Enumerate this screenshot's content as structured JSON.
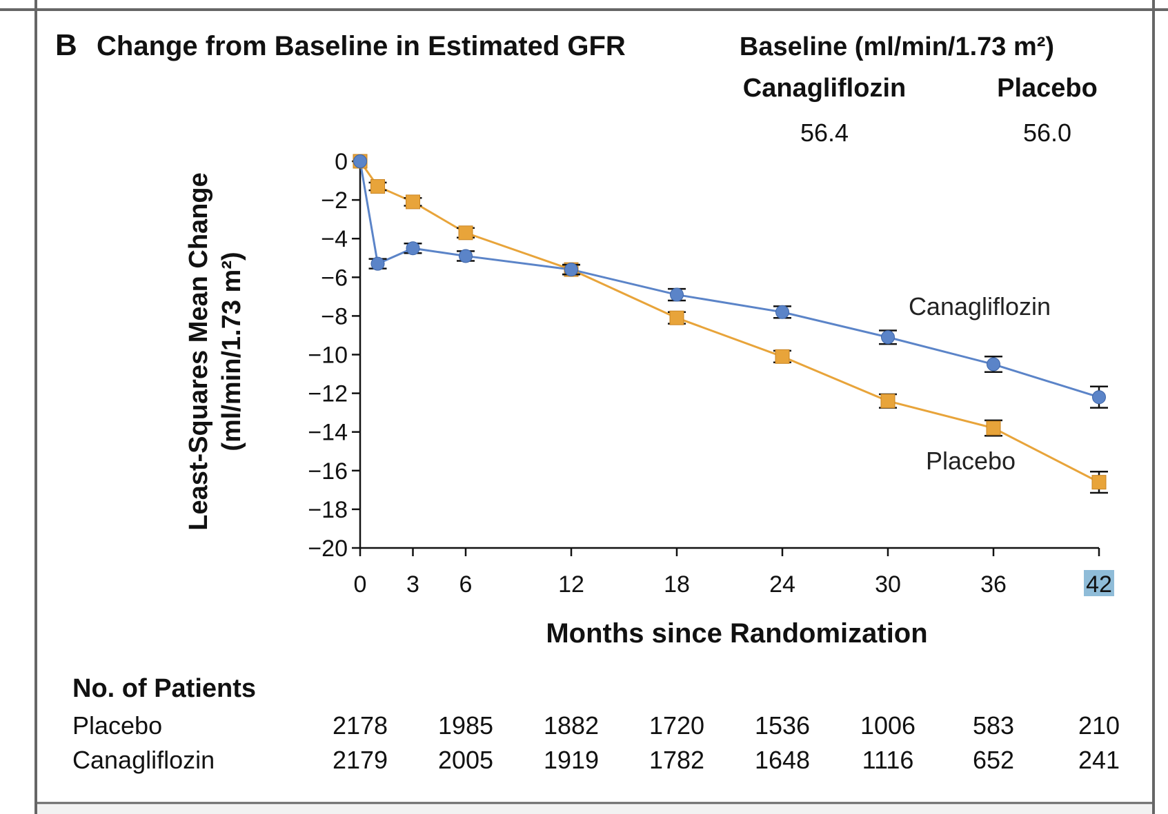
{
  "panel_label": "B",
  "title": "Change from Baseline in Estimated GFR",
  "baseline": {
    "header": "Baseline (ml/min/1.73 m²)",
    "groups": [
      {
        "name": "Canagliflozin",
        "value": "56.4"
      },
      {
        "name": "Placebo",
        "value": "56.0"
      }
    ]
  },
  "chart_data": {
    "type": "line",
    "title": "Change from Baseline in Estimated GFR",
    "xlabel": "Months since Randomization",
    "ylabel_line1": "Least-Squares Mean Change",
    "ylabel_line2": "(ml/min/1.73 m²)",
    "xlim": [
      0,
      42
    ],
    "ylim": [
      -20,
      0
    ],
    "x_ticks": [
      0,
      3,
      6,
      12,
      18,
      24,
      30,
      36,
      42
    ],
    "x_tick_labels": [
      "0",
      "3",
      "6",
      "12",
      "18",
      "24",
      "30",
      "36",
      "42"
    ],
    "highlighted_x_tick": "42",
    "y_ticks": [
      0,
      -2,
      -4,
      -6,
      -8,
      -10,
      -12,
      -14,
      -16,
      -18,
      -20
    ],
    "y_tick_labels": [
      "0",
      "−2",
      "−4",
      "−6",
      "−8",
      "−10",
      "−12",
      "−14",
      "−16",
      "−18",
      "−20"
    ],
    "series": [
      {
        "name": "Canagliflozin",
        "marker": "circle",
        "color": "#5B84C8",
        "x": [
          0,
          1,
          3,
          6,
          12,
          18,
          24,
          30,
          36,
          42
        ],
        "y": [
          0,
          -5.3,
          -4.5,
          -4.9,
          -5.6,
          -6.9,
          -7.8,
          -9.1,
          -10.5,
          -12.2
        ],
        "error": [
          0,
          0.25,
          0.25,
          0.25,
          0.25,
          0.3,
          0.3,
          0.35,
          0.4,
          0.55
        ]
      },
      {
        "name": "Placebo",
        "marker": "square",
        "color": "#E8A43A",
        "x": [
          0,
          1,
          3,
          6,
          12,
          18,
          24,
          30,
          36,
          42
        ],
        "y": [
          0,
          -1.3,
          -2.1,
          -3.7,
          -5.6,
          -8.1,
          -10.1,
          -12.4,
          -13.8,
          -16.6
        ],
        "error": [
          0,
          0.2,
          0.2,
          0.25,
          0.25,
          0.3,
          0.3,
          0.35,
          0.4,
          0.55
        ]
      }
    ],
    "annotations": [
      {
        "text": "Canagliflozin",
        "series": "Canagliflozin"
      },
      {
        "text": "Placebo",
        "series": "Placebo"
      }
    ]
  },
  "patients": {
    "header": "No. of Patients",
    "rows": [
      {
        "label": "Placebo",
        "values": [
          "2178",
          "1985",
          "1882",
          "1720",
          "1536",
          "1006",
          "583",
          "210"
        ]
      },
      {
        "label": "Canagliflozin",
        "values": [
          "2179",
          "2005",
          "1919",
          "1782",
          "1648",
          "1116",
          "652",
          "241"
        ]
      }
    ]
  }
}
